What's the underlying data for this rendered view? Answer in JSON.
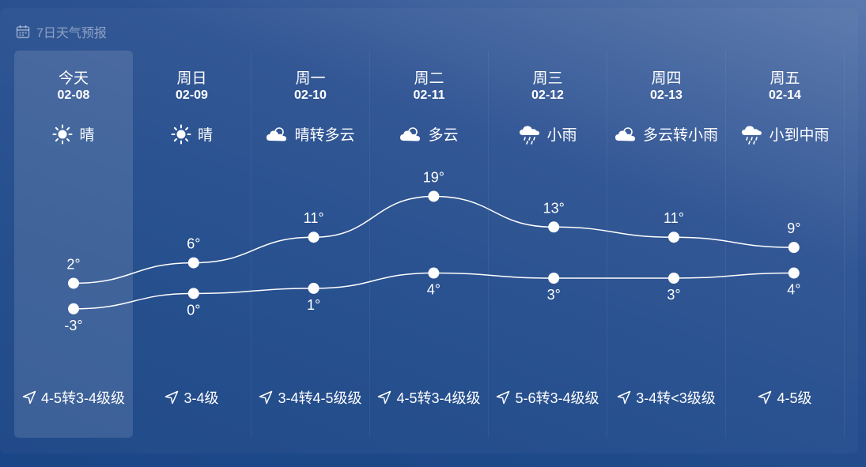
{
  "header": {
    "title": "7日天气预报",
    "icon": "calendar-icon"
  },
  "days": [
    {
      "name": "今天",
      "date": "02-08",
      "weather": "晴",
      "icon": "sun-icon",
      "high": "2°",
      "low": "-3°",
      "wind": "4-5转3-4级级",
      "active": true
    },
    {
      "name": "周日",
      "date": "02-09",
      "weather": "晴",
      "icon": "sun-icon",
      "high": "6°",
      "low": "0°",
      "wind": "3-4级"
    },
    {
      "name": "周一",
      "date": "02-10",
      "weather": "晴转多云",
      "icon": "cloud-icon",
      "high": "11°",
      "low": "1°",
      "wind": "3-4转4-5级级"
    },
    {
      "name": "周二",
      "date": "02-11",
      "weather": "多云",
      "icon": "cloud-icon",
      "high": "19°",
      "low": "4°",
      "wind": "4-5转3-4级级"
    },
    {
      "name": "周三",
      "date": "02-12",
      "weather": "小雨",
      "icon": "rain-icon",
      "high": "13°",
      "low": "3°",
      "wind": "5-6转3-4级级"
    },
    {
      "name": "周四",
      "date": "02-13",
      "weather": "多云转小雨",
      "icon": "cloud-icon",
      "high": "11°",
      "low": "3°",
      "wind": "3-4转<3级级"
    },
    {
      "name": "周五",
      "date": "02-14",
      "weather": "小到中雨",
      "icon": "rain-icon",
      "high": "9°",
      "low": "4°",
      "wind": "4-5级"
    }
  ],
  "chart_data": {
    "type": "line",
    "categories": [
      "今天",
      "周日",
      "周一",
      "周二",
      "周三",
      "周四",
      "周五"
    ],
    "series": [
      {
        "values": [
          2,
          6,
          11,
          19,
          13,
          11,
          9
        ]
      },
      {
        "values": [
          -3,
          0,
          1,
          4,
          3,
          3,
          4
        ]
      }
    ]
  }
}
